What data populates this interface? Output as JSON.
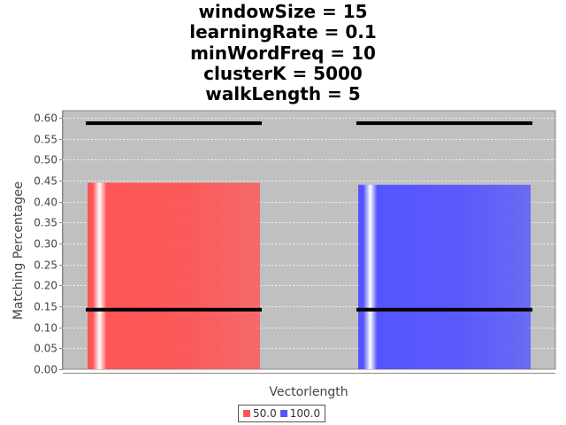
{
  "title_lines": [
    "windowSize = 15",
    "learningRate = 0.1",
    "minWordFreq = 10",
    "clusterK = 5000",
    "walkLength = 5"
  ],
  "colors": {
    "series_1": "#ff5555",
    "series_2": "#5555ff",
    "plot_background": "#c0c0c0",
    "gridline": "#ffffff",
    "error_bar": "#000000"
  },
  "chart_data": {
    "type": "bar",
    "xlabel": "Vectorlength",
    "ylabel": "Matching Percentagee",
    "ylim": [
      0,
      0.6
    ],
    "yticks": [
      "0.00",
      "0.05",
      "0.10",
      "0.15",
      "0.20",
      "0.25",
      "0.30",
      "0.35",
      "0.40",
      "0.45",
      "0.50",
      "0.55",
      "0.60"
    ],
    "grid": true,
    "legend_position": "bottom",
    "series": [
      {
        "name": "50.0",
        "value": 0.445,
        "range_low": 0.142,
        "range_high": 0.587
      },
      {
        "name": "100.0",
        "value": 0.44,
        "range_low": 0.142,
        "range_high": 0.587
      }
    ]
  }
}
